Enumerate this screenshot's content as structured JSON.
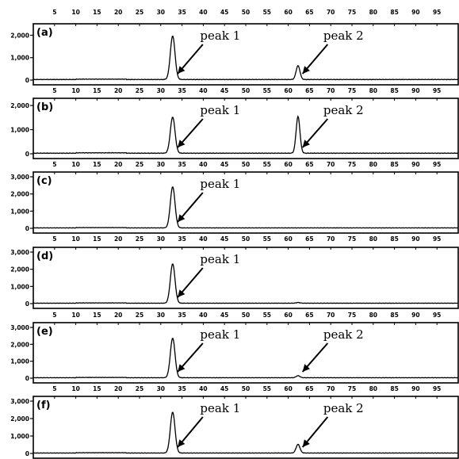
{
  "chart_data": [
    {
      "type": "line",
      "panel_label": "(a)",
      "xlim": [
        0,
        100
      ],
      "x_ticks": [
        "5",
        "10",
        "15",
        "20",
        "25",
        "30",
        "35",
        "40",
        "45",
        "50",
        "55",
        "60",
        "65",
        "70",
        "75",
        "80",
        "85",
        "90",
        "95"
      ],
      "x_ticks_position": "top",
      "ylim": [
        0,
        2300
      ],
      "y_ticks": [
        0,
        1000,
        2000
      ],
      "y_tick_labels": [
        "0",
        "1,000",
        "2,000"
      ],
      "series": [
        {
          "peaks": [
            {
              "x": 32.8,
              "height": 1950,
              "width": 0.55
            },
            {
              "x": 62.3,
              "height": 620,
              "width": 0.45
            }
          ]
        }
      ],
      "annotations": [
        {
          "text": "peak 1",
          "points_to_x": 33.6
        },
        {
          "text": "peak 2",
          "points_to_x": 63.0
        }
      ]
    },
    {
      "type": "line",
      "panel_label": "(b)",
      "xlim": [
        0,
        100
      ],
      "x_ticks": [
        "5",
        "10",
        "15",
        "20",
        "25",
        "30",
        "35",
        "40",
        "45",
        "50",
        "55",
        "60",
        "65",
        "70",
        "75",
        "80",
        "85",
        "90",
        "95"
      ],
      "x_ticks_position": "bottom",
      "ylim": [
        0,
        2100
      ],
      "y_ticks": [
        0,
        1000,
        2000
      ],
      "y_tick_labels": [
        "0",
        "1,000",
        "2,000"
      ],
      "series": [
        {
          "peaks": [
            {
              "x": 32.8,
              "height": 1500,
              "width": 0.55
            },
            {
              "x": 62.3,
              "height": 1520,
              "width": 0.45
            }
          ]
        }
      ],
      "annotations": [
        {
          "text": "peak 1",
          "points_to_x": 33.6
        },
        {
          "text": "peak 2",
          "points_to_x": 63.0
        }
      ]
    },
    {
      "type": "line",
      "panel_label": "(c)",
      "xlim": [
        0,
        100
      ],
      "x_ticks": [
        "5",
        "10",
        "15",
        "20",
        "25",
        "30",
        "35",
        "40",
        "45",
        "50",
        "55",
        "60",
        "65",
        "70",
        "75",
        "80",
        "85",
        "90",
        "95"
      ],
      "x_ticks_position": "bottom",
      "ylim": [
        0,
        3000
      ],
      "y_ticks": [
        0,
        1000,
        2000,
        3000
      ],
      "y_tick_labels": [
        "0",
        "1,000",
        "2,000",
        "3,000"
      ],
      "series": [
        {
          "peaks": [
            {
              "x": 32.8,
              "height": 2400,
              "width": 0.55
            }
          ]
        }
      ],
      "annotations": [
        {
          "text": "peak 1",
          "points_to_x": 33.6
        }
      ]
    },
    {
      "type": "line",
      "panel_label": "(d)",
      "xlim": [
        0,
        100
      ],
      "x_ticks": [
        "5",
        "10",
        "15",
        "20",
        "25",
        "30",
        "35",
        "40",
        "45",
        "50",
        "55",
        "60",
        "65",
        "70",
        "75",
        "80",
        "85",
        "90",
        "95"
      ],
      "x_ticks_position": "bottom",
      "ylim": [
        0,
        3000
      ],
      "y_ticks": [
        0,
        1000,
        2000,
        3000
      ],
      "y_tick_labels": [
        "0",
        "1,000",
        "2,000",
        "3,000"
      ],
      "series": [
        {
          "peaks": [
            {
              "x": 32.8,
              "height": 2300,
              "width": 0.55
            },
            {
              "x": 62.3,
              "height": 40,
              "width": 0.45
            }
          ]
        }
      ],
      "annotations": [
        {
          "text": "peak 1",
          "points_to_x": 33.6
        }
      ]
    },
    {
      "type": "line",
      "panel_label": "(e)",
      "xlim": [
        0,
        100
      ],
      "x_ticks": [
        "5",
        "10",
        "15",
        "20",
        "25",
        "30",
        "35",
        "40",
        "45",
        "50",
        "55",
        "60",
        "65",
        "70",
        "75",
        "80",
        "85",
        "90",
        "95"
      ],
      "x_ticks_position": "bottom",
      "ylim": [
        0,
        3000
      ],
      "y_ticks": [
        0,
        1000,
        2000,
        3000
      ],
      "y_tick_labels": [
        "0",
        "1,000",
        "2,000",
        "3,000"
      ],
      "series": [
        {
          "peaks": [
            {
              "x": 32.8,
              "height": 2350,
              "width": 0.55
            },
            {
              "x": 62.3,
              "height": 120,
              "width": 0.45
            }
          ]
        }
      ],
      "annotations": [
        {
          "text": "peak 1",
          "points_to_x": 33.6
        },
        {
          "text": "peak 2",
          "points_to_x": 63.0
        }
      ]
    },
    {
      "type": "line",
      "panel_label": "(f)",
      "xlim": [
        0,
        100
      ],
      "x_ticks": [
        "5",
        "10",
        "15",
        "20",
        "25",
        "30",
        "35",
        "40",
        "45",
        "50",
        "55",
        "60",
        "65",
        "70",
        "75",
        "80",
        "85",
        "90",
        "95"
      ],
      "x_ticks_position": "top",
      "ylim": [
        0,
        3000
      ],
      "y_ticks": [
        0,
        1000,
        2000,
        3000
      ],
      "y_tick_labels": [
        "0",
        "1,000",
        "2,000",
        "3,000"
      ],
      "series": [
        {
          "peaks": [
            {
              "x": 32.8,
              "height": 2350,
              "width": 0.55
            },
            {
              "x": 62.3,
              "height": 500,
              "width": 0.45
            }
          ]
        }
      ],
      "annotations": [
        {
          "text": "peak 1",
          "points_to_x": 33.6
        },
        {
          "text": "peak 2",
          "points_to_x": 63.0
        }
      ]
    }
  ],
  "colors": {
    "line": "#000000",
    "axis": "#000000",
    "background": "#ffffff"
  }
}
